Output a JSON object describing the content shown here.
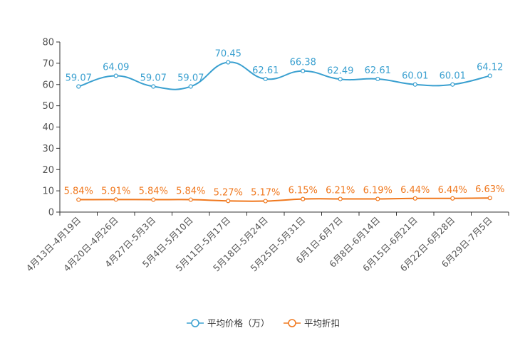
{
  "chart_data": {
    "type": "line",
    "categories": [
      "4月13日-4月19日",
      "4月20日-4月26日",
      "4月27日-5月3日",
      "5月4日-5月10日",
      "5月11日-5月17日",
      "5月18日-5月24日",
      "5月25日-5月31日",
      "6月1日-6月7日",
      "6月8日-6月14日",
      "6月15日-6月21日",
      "6月22日-6月28日",
      "6月29日-7月5日"
    ],
    "ylim": [
      0,
      80
    ],
    "yticks": [
      0,
      10,
      20,
      30,
      40,
      50,
      60,
      70,
      80
    ],
    "series": [
      {
        "name": "平均价格（万）",
        "color": "#3aa0d0",
        "values": [
          59.07,
          64.09,
          59.07,
          59.07,
          70.45,
          62.61,
          66.38,
          62.49,
          62.61,
          60.01,
          60.01,
          64.12
        ],
        "labels": [
          "59.07",
          "64.09",
          "59.07",
          "59.07",
          "70.45",
          "62.61",
          "66.38",
          "62.49",
          "62.61",
          "60.01",
          "60.01",
          "64.12"
        ]
      },
      {
        "name": "平均折扣",
        "color": "#f0781e",
        "values": [
          5.84,
          5.91,
          5.84,
          5.84,
          5.27,
          5.17,
          6.15,
          6.21,
          6.19,
          6.44,
          6.44,
          6.63
        ],
        "labels": [
          "5.84%",
          "5.91%",
          "5.84%",
          "5.84%",
          "5.27%",
          "5.17%",
          "6.15%",
          "6.21%",
          "6.19%",
          "6.44%",
          "6.44%",
          "6.63%"
        ]
      }
    ],
    "title": "",
    "xlabel": "",
    "ylabel": "",
    "legend_position": "bottom-center"
  }
}
